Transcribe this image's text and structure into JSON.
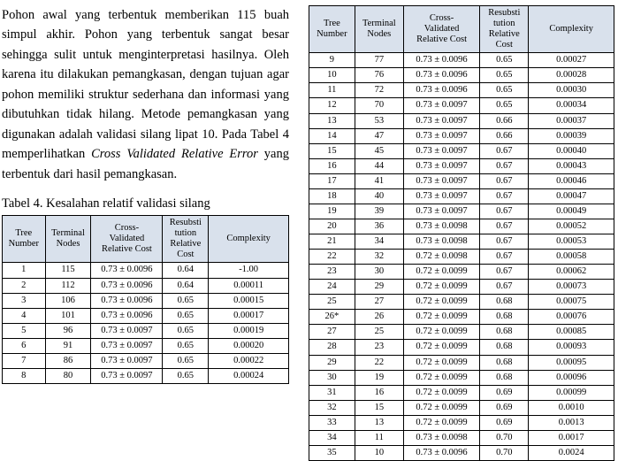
{
  "paragraph_text": "Pohon awal yang terbentuk memberikan 115 buah simpul akhir. Pohon yang terbentuk sangat besar sehingga sulit untuk menginterpretasi hasilnya. Oleh karena itu dilakukan pemangkasan, dengan tujuan agar pohon memiliki struktur sederhana dan informasi yang dibutuhkan tidak hilang. Metode pemangkasan yang digunakan adalah validasi silang lipat 10. Pada Tabel 4 memperlihatkan ",
  "paragraph_em": "Cross Validated Relative Error",
  "paragraph_tail": " yang terbentuk dari hasil pemangkasan.",
  "caption": "Tabel 4. Kesalahan relatif validasi silang",
  "table": {
    "type": "table",
    "header_bg": "#d9e1ec",
    "border_color": "#000000",
    "font_size_pt": 8,
    "columns": [
      {
        "label_l1": "Tree",
        "label_l2": "Number",
        "label_l3": "",
        "width_pct": 15
      },
      {
        "label_l1": "Terminal",
        "label_l2": "Nodes",
        "label_l3": "",
        "width_pct": 16
      },
      {
        "label_l1": "Cross-",
        "label_l2": "Validated",
        "label_l3": "Relative Cost",
        "width_pct": 25
      },
      {
        "label_l1": "Resubsti",
        "label_l2": "tution",
        "label_l3": "Relative",
        "label_l4": "Cost",
        "width_pct": 16
      },
      {
        "label_l1": "Complexity",
        "label_l2": "",
        "label_l3": "",
        "width_pct": 28
      }
    ],
    "left_rows": [
      [
        "1",
        "115",
        "0.73 ± 0.0096",
        "0.64",
        "-1.00"
      ],
      [
        "2",
        "112",
        "0.73 ± 0.0096",
        "0.64",
        "0.00011"
      ],
      [
        "3",
        "106",
        "0.73 ± 0.0096",
        "0.65",
        "0.00015"
      ],
      [
        "4",
        "101",
        "0.73 ± 0.0096",
        "0.65",
        "0.00017"
      ],
      [
        "5",
        "96",
        "0.73 ± 0.0097",
        "0.65",
        "0.00019"
      ],
      [
        "6",
        "91",
        "0.73 ± 0.0097",
        "0.65",
        "0.00020"
      ],
      [
        "7",
        "86",
        "0.73 ± 0.0097",
        "0.65",
        "0.00022"
      ],
      [
        "8",
        "80",
        "0.73 ± 0.0097",
        "0.65",
        "0.00024"
      ]
    ],
    "right_rows": [
      [
        "9",
        "77",
        "0.73 ± 0.0096",
        "0.65",
        "0.00027"
      ],
      [
        "10",
        "76",
        "0.73 ± 0.0096",
        "0.65",
        "0.00028"
      ],
      [
        "11",
        "72",
        "0.73 ± 0.0096",
        "0.65",
        "0.00030"
      ],
      [
        "12",
        "70",
        "0.73 ± 0.0097",
        "0.65",
        "0.00034"
      ],
      [
        "13",
        "53",
        "0.73 ± 0.0097",
        "0.66",
        "0.00037"
      ],
      [
        "14",
        "47",
        "0.73 ± 0.0097",
        "0.66",
        "0.00039"
      ],
      [
        "15",
        "45",
        "0.73 ± 0.0097",
        "0.67",
        "0.00040"
      ],
      [
        "16",
        "44",
        "0.73 ± 0.0097",
        "0.67",
        "0.00043"
      ],
      [
        "17",
        "41",
        "0.73 ± 0.0097",
        "0.67",
        "0.00046"
      ],
      [
        "18",
        "40",
        "0.73 ± 0.0097",
        "0.67",
        "0.00047"
      ],
      [
        "19",
        "39",
        "0.73 ± 0.0097",
        "0.67",
        "0.00049"
      ],
      [
        "20",
        "36",
        "0.73 ± 0.0098",
        "0.67",
        "0.00052"
      ],
      [
        "21",
        "34",
        "0.73 ± 0.0098",
        "0.67",
        "0.00053"
      ],
      [
        "22",
        "32",
        "0.72 ± 0.0098",
        "0.67",
        "0.00058"
      ],
      [
        "23",
        "30",
        "0.72 ± 0.0099",
        "0.67",
        "0.00062"
      ],
      [
        "24",
        "29",
        "0.72 ± 0.0099",
        "0.67",
        "0.00073"
      ],
      [
        "25",
        "27",
        "0.72 ± 0.0099",
        "0.68",
        "0.00075"
      ],
      [
        "26*",
        "26",
        "0.72 ± 0.0099",
        "0.68",
        "0.00076"
      ],
      [
        "27",
        "25",
        "0.72 ± 0.0099",
        "0.68",
        "0.00085"
      ],
      [
        "28",
        "23",
        "0.72 ± 0.0099",
        "0.68",
        "0.00093"
      ],
      [
        "29",
        "22",
        "0.72 ± 0.0099",
        "0.68",
        "0.00095"
      ],
      [
        "30",
        "19",
        "0.72 ± 0.0099",
        "0.68",
        "0.00096"
      ],
      [
        "31",
        "16",
        "0.72 ± 0.0099",
        "0.69",
        "0.00099"
      ],
      [
        "32",
        "15",
        "0.72 ± 0.0099",
        "0.69",
        "0.0010"
      ],
      [
        "33",
        "13",
        "0.72 ± 0.0099",
        "0.69",
        "0.0013"
      ],
      [
        "34",
        "11",
        "0.73 ± 0.0098",
        "0.70",
        "0.0017"
      ],
      [
        "35",
        "10",
        "0.73 ± 0.0096",
        "0.70",
        "0.0024"
      ]
    ]
  }
}
